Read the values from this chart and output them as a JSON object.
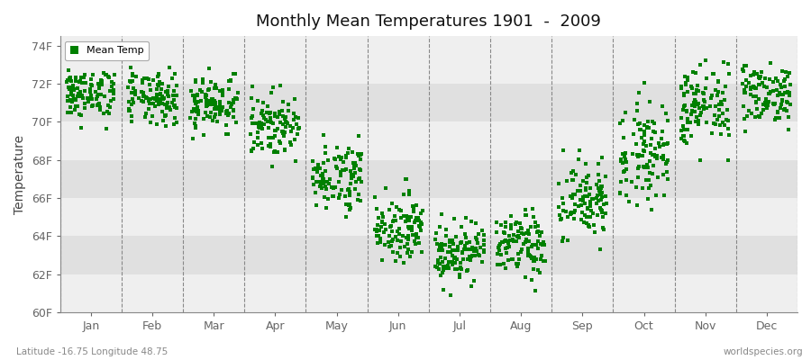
{
  "title": "Monthly Mean Temperatures 1901  -  2009",
  "ylabel": "Temperature",
  "subtitle_left": "Latitude -16.75 Longitude 48.75",
  "subtitle_right": "worldspecies.org",
  "legend_label": "Mean Temp",
  "dot_color": "#008000",
  "background_color": "#ffffff",
  "plot_bg_light": "#efefef",
  "plot_bg_dark": "#e0e0e0",
  "ylim": [
    60,
    74.5
  ],
  "yticks": [
    60,
    62,
    64,
    66,
    68,
    70,
    72,
    74
  ],
  "ytick_labels": [
    "60F",
    "62F",
    "64F",
    "66F",
    "68F",
    "70F",
    "72F",
    "74F"
  ],
  "months": [
    "Jan",
    "Feb",
    "Mar",
    "Apr",
    "May",
    "Jun",
    "Jul",
    "Aug",
    "Sep",
    "Oct",
    "Nov",
    "Dec"
  ],
  "n_years": 109,
  "seed": 42,
  "monthly_means": [
    71.5,
    71.2,
    71.0,
    69.8,
    67.2,
    64.5,
    63.2,
    63.5,
    65.8,
    68.5,
    70.8,
    71.5
  ],
  "monthly_stds": [
    0.7,
    0.7,
    0.75,
    0.8,
    0.9,
    0.85,
    0.8,
    0.85,
    1.1,
    1.3,
    1.1,
    0.8
  ],
  "monthly_mins": [
    69.0,
    68.5,
    68.0,
    67.0,
    65.0,
    62.0,
    60.5,
    61.0,
    63.0,
    64.5,
    68.0,
    69.5
  ],
  "monthly_maxs": [
    73.5,
    73.2,
    73.0,
    72.0,
    69.5,
    67.0,
    66.0,
    66.0,
    68.5,
    72.5,
    73.5,
    73.5
  ]
}
